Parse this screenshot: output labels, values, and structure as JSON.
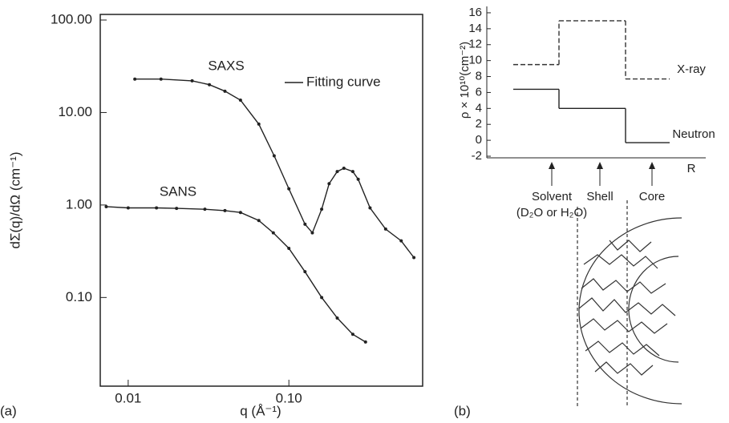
{
  "chart_data": [
    {
      "type": "line",
      "panel_label": "(a)",
      "x_label": "q (Å⁻¹)",
      "y_label": "dΣ(q)/dΩ (cm⁻¹)",
      "xscale": "log",
      "yscale": "log",
      "xlim": [
        0.0067,
        0.68
      ],
      "ylim": [
        0.011,
        115
      ],
      "xticks": [
        0.01,
        {
          "value": 0.1,
          "label": "0.10"
        }
      ],
      "yticks": [
        {
          "value": 0.1,
          "label": "0.10"
        },
        {
          "value": 1,
          "label": "1.00"
        },
        {
          "value": 10,
          "label": "10.00"
        },
        {
          "value": 100,
          "label": "100.00"
        }
      ],
      "legend": {
        "label": "Fitting curve",
        "position": "upper right"
      },
      "series": [
        {
          "name": "SAXS",
          "color": "#222222",
          "x": [
            0.011,
            0.016,
            0.025,
            0.032,
            0.04,
            0.05,
            0.065,
            0.081,
            0.1,
            0.126,
            0.14,
            0.16,
            0.178,
            0.2,
            0.22,
            0.25,
            0.27,
            0.32,
            0.4,
            0.5,
            0.6
          ],
          "values": [
            23,
            23,
            22,
            20,
            17,
            13.6,
            7.5,
            3.4,
            1.5,
            0.62,
            0.5,
            0.9,
            1.7,
            2.3,
            2.5,
            2.3,
            1.9,
            0.93,
            0.55,
            0.41,
            0.27
          ]
        },
        {
          "name": "SANS",
          "color": "#222222",
          "x": [
            0.0073,
            0.01,
            0.015,
            0.02,
            0.03,
            0.04,
            0.05,
            0.065,
            0.08,
            0.1,
            0.126,
            0.16,
            0.2,
            0.25,
            0.3
          ],
          "values": [
            0.96,
            0.93,
            0.93,
            0.92,
            0.9,
            0.87,
            0.83,
            0.68,
            0.5,
            0.34,
            0.19,
            0.1,
            0.06,
            0.04,
            0.033
          ]
        }
      ]
    },
    {
      "type": "step",
      "panel_label": "(b)",
      "x_label": "R",
      "y_label": "ρ × 10¹⁰(cm⁻²)",
      "ylim": [
        -2.2,
        16.8
      ],
      "yticks": [
        -2,
        0,
        2,
        4,
        6,
        8,
        10,
        12,
        14,
        16
      ],
      "categories": [
        "Solvent",
        "Shell",
        "Core"
      ],
      "solvent_note": "(D₂O or H₂O)",
      "series": [
        {
          "name": "X-ray",
          "color": "#333333",
          "dash": true,
          "values": [
            9.5,
            15,
            7.7
          ]
        },
        {
          "name": "Neutron",
          "color": "#222222",
          "dash": false,
          "values": [
            6.4,
            4,
            -0.3
          ]
        }
      ]
    }
  ]
}
